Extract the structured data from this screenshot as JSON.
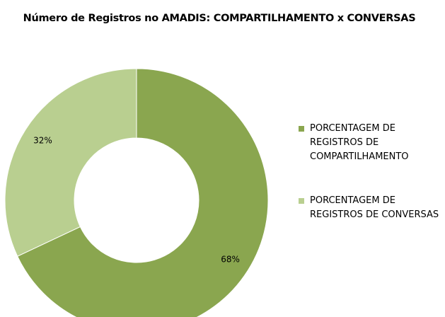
{
  "chart_data": {
    "type": "donut",
    "title": "Número de Registros no AMADIS: COMPARTILHAMENTO x CONVERSAS",
    "categories": [
      "PORCENTAGEM DE REGISTROS DE COMPARTILHAMENTO",
      "PORCENTAGEM DE REGISTROS DE CONVERSAS"
    ],
    "values": [
      68,
      32
    ],
    "value_labels": [
      "68%",
      "32%"
    ],
    "colors": [
      "#8aa64f",
      "#b9cf90"
    ],
    "legend": "right"
  }
}
